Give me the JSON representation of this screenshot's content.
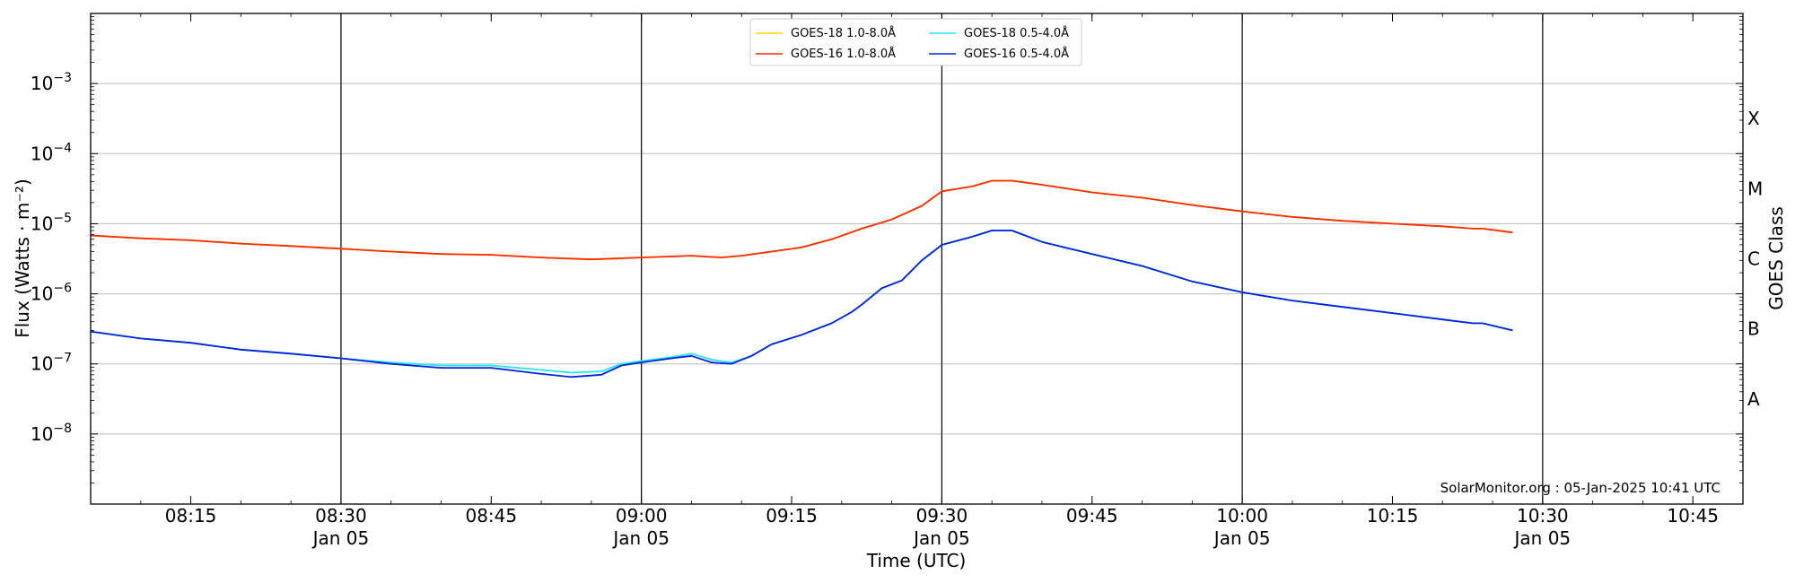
{
  "chart_data": {
    "type": "line",
    "xlabel": "Time (UTC)",
    "ylabel": "Flux (Watts · m⁻²)",
    "right_label": "GOES Class",
    "credit": "SolarMonitor.org : 05-Jan-2025 10:41 UTC",
    "xlim": [
      "08:05",
      "10:50"
    ],
    "ylim": [
      1e-09,
      0.01
    ],
    "yscale": "log",
    "grid": "horizontal",
    "legend_position": "top-center",
    "x_ticks": [
      {
        "time": "08:15",
        "label": "08:15",
        "date": ""
      },
      {
        "time": "08:30",
        "label": "08:30",
        "date": "Jan 05"
      },
      {
        "time": "08:45",
        "label": "08:45",
        "date": ""
      },
      {
        "time": "09:00",
        "label": "09:00",
        "date": "Jan 05"
      },
      {
        "time": "09:15",
        "label": "09:15",
        "date": ""
      },
      {
        "time": "09:30",
        "label": "09:30",
        "date": "Jan 05"
      },
      {
        "time": "09:45",
        "label": "09:45",
        "date": ""
      },
      {
        "time": "10:00",
        "label": "10:00",
        "date": "Jan 05"
      },
      {
        "time": "10:15",
        "label": "10:15",
        "date": ""
      },
      {
        "time": "10:30",
        "label": "10:30",
        "date": "Jan 05"
      },
      {
        "time": "10:45",
        "label": "10:45",
        "date": ""
      }
    ],
    "vertical_lines": [
      "08:30",
      "09:00",
      "09:30",
      "10:00",
      "10:30"
    ],
    "y_ticks": [
      {
        "value": 1e-08,
        "base": "10",
        "exp": "−8"
      },
      {
        "value": 1e-07,
        "base": "10",
        "exp": "−7"
      },
      {
        "value": 1e-06,
        "base": "10",
        "exp": "−6"
      },
      {
        "value": 1e-05,
        "base": "10",
        "exp": "−5"
      },
      {
        "value": 0.0001,
        "base": "10",
        "exp": "−4"
      },
      {
        "value": 0.001,
        "base": "10",
        "exp": "−3"
      }
    ],
    "goes_classes": [
      {
        "label": "A",
        "value": 3.16e-08
      },
      {
        "label": "B",
        "value": 3.16e-07
      },
      {
        "label": "C",
        "value": 3.16e-06
      },
      {
        "label": "M",
        "value": 3.16e-05
      },
      {
        "label": "X",
        "value": 0.000316
      }
    ],
    "series": [
      {
        "name": "GOES-18 1.0-8.0Å",
        "color": "#FFD700",
        "x": [
          "08:05",
          "08:10",
          "08:15",
          "08:20",
          "08:25",
          "08:30",
          "08:35",
          "08:40",
          "08:45",
          "08:50",
          "08:55",
          "09:00",
          "09:05",
          "09:08",
          "09:10",
          "09:13",
          "09:16",
          "09:19",
          "09:22",
          "09:25",
          "09:28",
          "09:30",
          "09:33",
          "09:35",
          "09:37",
          "09:40",
          "09:45",
          "09:50",
          "09:55",
          "10:00",
          "10:05",
          "10:10",
          "10:15",
          "10:20",
          "10:23",
          "10:24",
          "10:27"
        ],
        "values": [
          6.8e-06,
          6.2e-06,
          5.8e-06,
          5.2e-06,
          4.8e-06,
          4.4e-06,
          4e-06,
          3.7e-06,
          3.6e-06,
          3.3e-06,
          3.1e-06,
          3.3e-06,
          3.5e-06,
          3.3e-06,
          3.5e-06,
          4e-06,
          4.6e-06,
          6e-06,
          8.5e-06,
          1.15e-05,
          1.8e-05,
          2.9e-05,
          3.4e-05,
          4.1e-05,
          4.1e-05,
          3.6e-05,
          2.8e-05,
          2.35e-05,
          1.85e-05,
          1.5e-05,
          1.25e-05,
          1.1e-05,
          1e-05,
          9.2e-06,
          8.5e-06,
          8.5e-06,
          7.5e-06
        ]
      },
      {
        "name": "GOES-16 1.0-8.0Å",
        "color": "#FF2A00",
        "x": [
          "08:05",
          "08:10",
          "08:15",
          "08:20",
          "08:25",
          "08:30",
          "08:35",
          "08:40",
          "08:45",
          "08:50",
          "08:55",
          "09:00",
          "09:05",
          "09:08",
          "09:10",
          "09:13",
          "09:16",
          "09:19",
          "09:22",
          "09:25",
          "09:28",
          "09:30",
          "09:33",
          "09:35",
          "09:37",
          "09:40",
          "09:45",
          "09:50",
          "09:55",
          "10:00",
          "10:05",
          "10:10",
          "10:15",
          "10:20",
          "10:23",
          "10:24",
          "10:27"
        ],
        "values": [
          6.8e-06,
          6.2e-06,
          5.8e-06,
          5.2e-06,
          4.8e-06,
          4.4e-06,
          4e-06,
          3.7e-06,
          3.6e-06,
          3.3e-06,
          3.1e-06,
          3.3e-06,
          3.5e-06,
          3.3e-06,
          3.5e-06,
          4e-06,
          4.6e-06,
          6e-06,
          8.5e-06,
          1.15e-05,
          1.8e-05,
          2.9e-05,
          3.4e-05,
          4.1e-05,
          4.1e-05,
          3.6e-05,
          2.8e-05,
          2.35e-05,
          1.85e-05,
          1.5e-05,
          1.25e-05,
          1.1e-05,
          1e-05,
          9.2e-06,
          8.5e-06,
          8.5e-06,
          7.5e-06
        ]
      },
      {
        "name": "GOES-18 0.5-4.0Å",
        "color": "#22E5F0",
        "x": [
          "08:05",
          "08:10",
          "08:15",
          "08:20",
          "08:25",
          "08:30",
          "08:35",
          "08:40",
          "08:45",
          "08:50",
          "08:53",
          "08:56",
          "08:58",
          "09:00",
          "09:03",
          "09:05",
          "09:07",
          "09:09",
          "09:11",
          "09:13",
          "09:16",
          "09:19",
          "09:21",
          "09:22",
          "09:24",
          "09:26",
          "09:28",
          "09:30",
          "09:33",
          "09:35",
          "09:37",
          "09:40",
          "09:45",
          "09:50",
          "09:55",
          "10:00",
          "10:05",
          "10:10",
          "10:15",
          "10:20",
          "10:23",
          "10:24",
          "10:27"
        ],
        "values": [
          2.9e-07,
          2.3e-07,
          2e-07,
          1.6e-07,
          1.4e-07,
          1.2e-07,
          1.05e-07,
          9.5e-08,
          9.5e-08,
          8.2e-08,
          7.5e-08,
          7.8e-08,
          1e-07,
          1.1e-07,
          1.25e-07,
          1.4e-07,
          1.15e-07,
          1.05e-07,
          1.3e-07,
          1.9e-07,
          2.6e-07,
          3.8e-07,
          5.5e-07,
          7e-07,
          1.2e-06,
          1.55e-06,
          3e-06,
          5e-06,
          6.5e-06,
          8e-06,
          8e-06,
          5.5e-06,
          3.7e-06,
          2.5e-06,
          1.5e-06,
          1.05e-06,
          8e-07,
          6.5e-07,
          5.3e-07,
          4.3e-07,
          3.8e-07,
          3.8e-07,
          3e-07
        ]
      },
      {
        "name": "GOES-16 0.5-4.0Å",
        "color": "#0022DD",
        "x": [
          "08:05",
          "08:10",
          "08:15",
          "08:20",
          "08:25",
          "08:30",
          "08:35",
          "08:40",
          "08:45",
          "08:50",
          "08:53",
          "08:56",
          "08:58",
          "09:00",
          "09:03",
          "09:05",
          "09:07",
          "09:09",
          "09:11",
          "09:13",
          "09:16",
          "09:19",
          "09:21",
          "09:22",
          "09:24",
          "09:26",
          "09:28",
          "09:30",
          "09:33",
          "09:35",
          "09:37",
          "09:40",
          "09:45",
          "09:50",
          "09:55",
          "10:00",
          "10:05",
          "10:10",
          "10:15",
          "10:20",
          "10:23",
          "10:24",
          "10:27"
        ],
        "values": [
          2.9e-07,
          2.3e-07,
          2e-07,
          1.6e-07,
          1.4e-07,
          1.2e-07,
          1e-07,
          8.8e-08,
          8.8e-08,
          7.2e-08,
          6.5e-08,
          7e-08,
          9.5e-08,
          1.05e-07,
          1.2e-07,
          1.3e-07,
          1.05e-07,
          1e-07,
          1.3e-07,
          1.9e-07,
          2.6e-07,
          3.8e-07,
          5.5e-07,
          7e-07,
          1.2e-06,
          1.55e-06,
          3e-06,
          5e-06,
          6.5e-06,
          8e-06,
          8e-06,
          5.5e-06,
          3.7e-06,
          2.5e-06,
          1.5e-06,
          1.05e-06,
          8e-07,
          6.5e-07,
          5.3e-07,
          4.3e-07,
          3.8e-07,
          3.8e-07,
          3e-07
        ]
      }
    ]
  }
}
